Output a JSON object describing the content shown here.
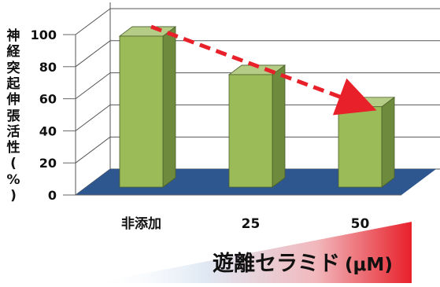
{
  "chart_data": {
    "type": "bar",
    "categories": [
      "非添加",
      "25",
      "50"
    ],
    "values": [
      101,
      77,
      57
    ],
    "ylabel_chars": [
      "神",
      "経",
      "突",
      "起",
      "伸",
      "張",
      "活",
      "性",
      "(",
      "%",
      ")"
    ],
    "yticks": [
      0,
      20,
      40,
      60,
      80,
      100
    ],
    "ylim": [
      0,
      100
    ],
    "grid": true,
    "trend_arrow": "from bar 1 to bar 3, red dashed",
    "concentration_label": "遊離セラミド",
    "concentration_unit": "(μM)",
    "colors": {
      "bar_front": "#9BBB59",
      "bar_side": "#6E8B3D",
      "bar_top": "#B5CC86",
      "floor": "#2E5790",
      "arrow": "#E8202A",
      "gradient_start": "#dce6f1",
      "gradient_end": "#e8202a"
    }
  }
}
